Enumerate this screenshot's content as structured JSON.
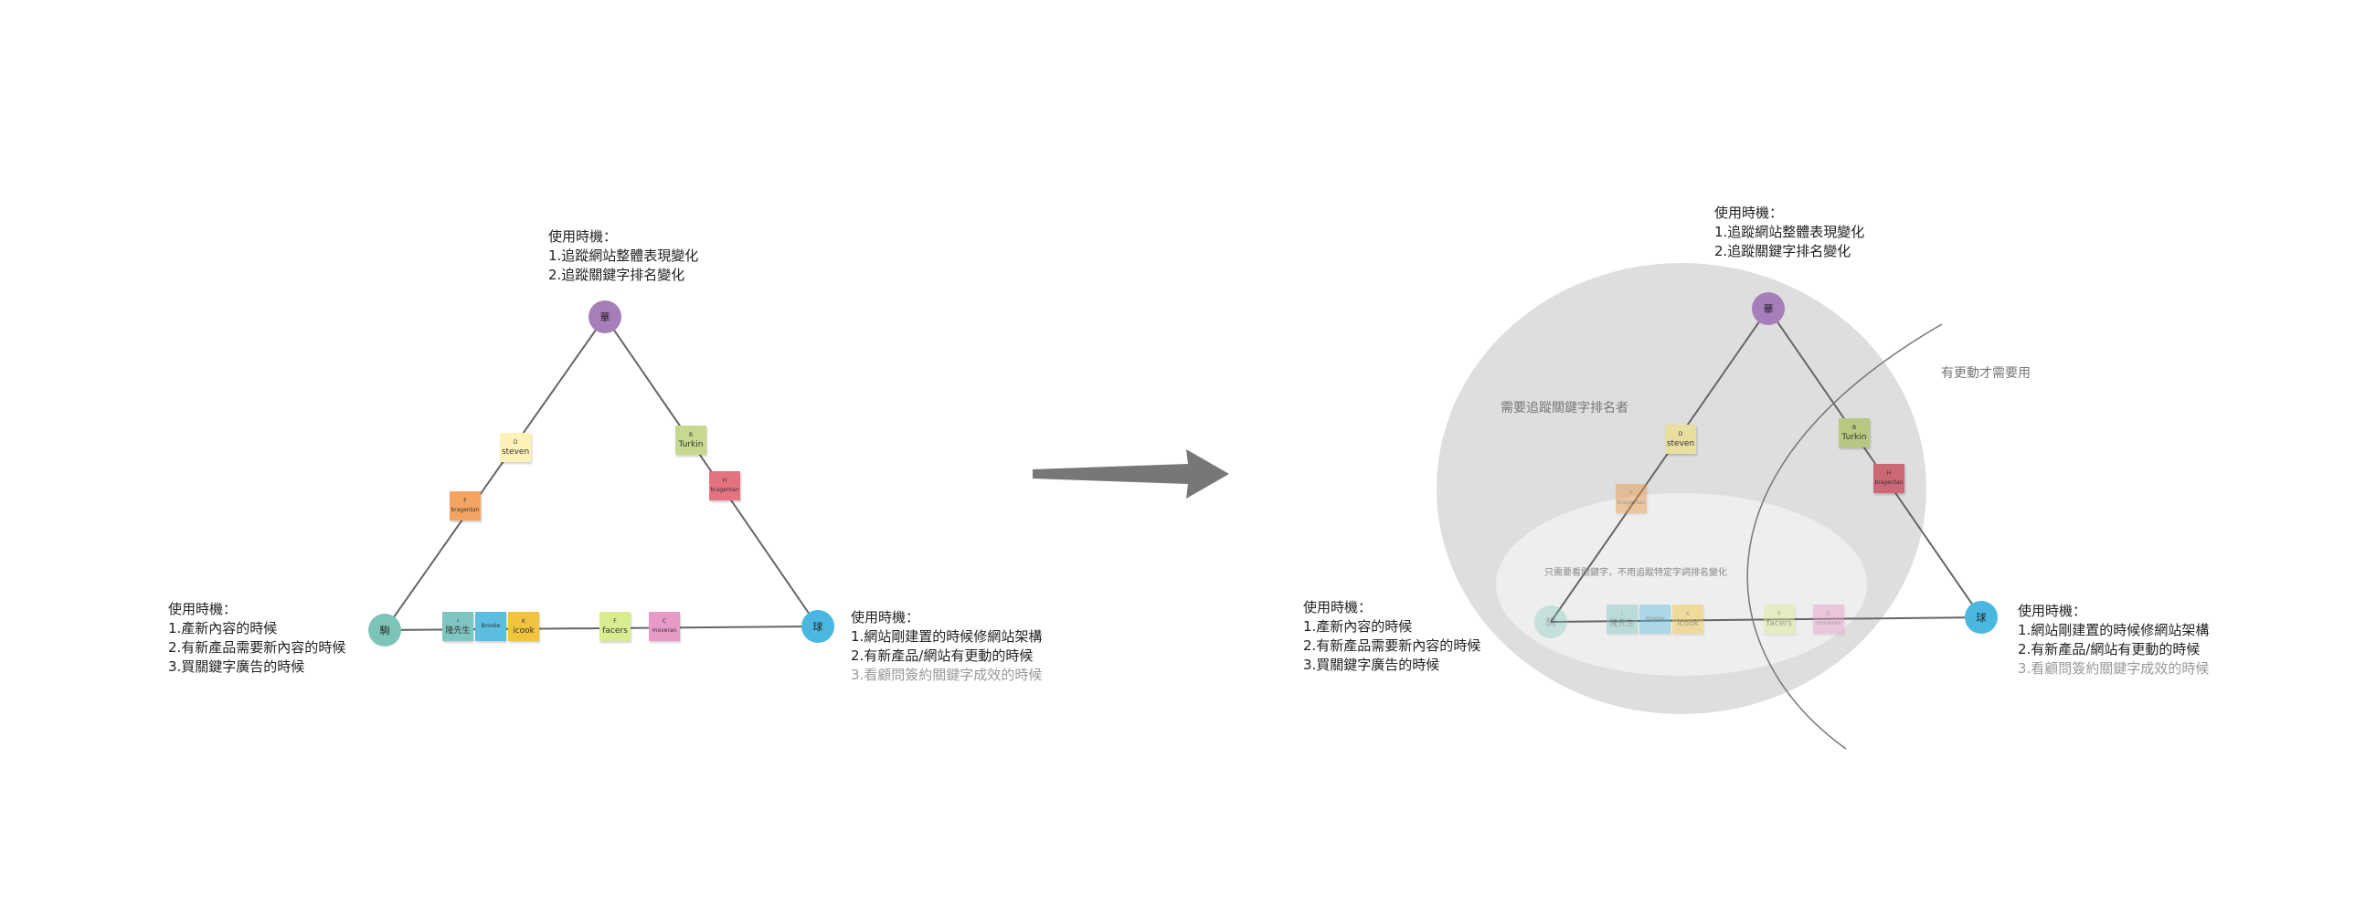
{
  "left_diagram": {
    "top_note": [
      "使用時機：",
      "1.追蹤網站整體表現變化",
      "2.追蹤關鍵字排名變化"
    ],
    "left_note": [
      "使用時機：",
      "1.產新內容的時候",
      "2.有新產品需要新內容的時候",
      "3.買關鍵字廣告的時候"
    ],
    "right_note": [
      "使用時機：",
      "1.網站剛建置的時候修網站架構",
      "2.有新產品/網站有更動的時候"
    ],
    "right_note_dim": "3.看顧問簽約關鍵字成效的時候",
    "nodes": {
      "top": "華",
      "left": "駒",
      "right": "球"
    },
    "stickies": [
      {
        "letter": "D",
        "name": "steven",
        "color": "#fdf3b8"
      },
      {
        "letter": "F",
        "name": "bragentan",
        "color": "#f4a460"
      },
      {
        "letter": "B",
        "name": "Turkin",
        "color": "#c6d98f"
      },
      {
        "letter": "H",
        "name": "bragentan",
        "color": "#e5737f"
      },
      {
        "letter": "I",
        "name": "隆先生",
        "color": "#7fc6c2"
      },
      {
        "letter": "",
        "name": "Brooke",
        "color": "#5bbde0"
      },
      {
        "letter": "K",
        "name": "icook",
        "color": "#f2c43e"
      },
      {
        "letter": "F",
        "name": "facers",
        "color": "#d9ec8f"
      },
      {
        "letter": "C",
        "name": "moveran",
        "color": "#e89ac6"
      }
    ]
  },
  "right_diagram": {
    "top_note": [
      "使用時機：",
      "1.追蹤網站整體表現變化",
      "2.追蹤關鍵字排名變化"
    ],
    "left_note": [
      "使用時機：",
      "1.產新內容的時候",
      "2.有新產品需要新內容的時候",
      "3.買關鍵字廣告的時候"
    ],
    "right_note": [
      "使用時機：",
      "1.網站剛建置的時候修網站架構",
      "2.有新產品/網站有更動的時候"
    ],
    "right_note_dim": "3.看顧問簽約關鍵字成效的時候",
    "zone_keyword": "需要追蹤關鍵字排名者",
    "zone_update": "有更動才需要用",
    "zone_inner": "只需要看關鍵字，不用追蹤特定字詞排名變化",
    "nodes": {
      "top": "華",
      "left": "駒",
      "right": "球"
    }
  },
  "colors": {
    "node_top": "#a67fba",
    "node_left": "#7cc4b8",
    "node_right": "#4ab7e0",
    "edge": "#666666",
    "arrow": "#777777",
    "ellipse_outer": "#dedede",
    "ellipse_inner": "#eeeeee"
  }
}
